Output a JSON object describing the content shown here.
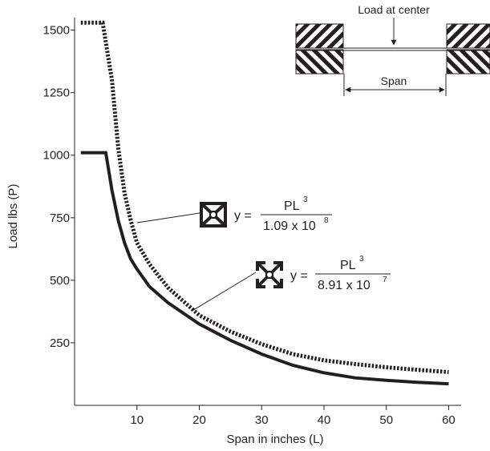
{
  "chart_data": {
    "type": "line",
    "title": "",
    "xlabel": "Span in inches (L)",
    "ylabel": "Load lbs (P)",
    "xlim": [
      0,
      62
    ],
    "ylim": [
      0,
      1550
    ],
    "xticks": [
      10,
      20,
      30,
      40,
      50,
      60
    ],
    "yticks": [
      250,
      500,
      750,
      1000,
      1250,
      1500
    ],
    "xtick_labels": [
      "10",
      "20",
      "30",
      "40",
      "50",
      "60"
    ],
    "ytick_labels": [
      "250",
      "500",
      "750",
      "1000",
      "1250",
      "1500"
    ],
    "grid": false,
    "legend": "none",
    "series": [
      {
        "style": "dotted",
        "color": "#231f20",
        "points": [
          [
            1,
            1530
          ],
          [
            4.5,
            1530
          ],
          [
            6,
            1300
          ],
          [
            7,
            1030
          ],
          [
            8,
            850
          ],
          [
            9,
            740
          ],
          [
            10,
            650
          ],
          [
            12,
            565
          ],
          [
            15,
            470
          ],
          [
            20,
            360
          ],
          [
            25,
            295
          ],
          [
            30,
            245
          ],
          [
            35,
            205
          ],
          [
            40,
            180
          ],
          [
            45,
            165
          ],
          [
            50,
            152
          ],
          [
            55,
            142
          ],
          [
            60,
            133
          ]
        ]
      },
      {
        "style": "solid",
        "color": "#231f20",
        "points": [
          [
            1,
            1010
          ],
          [
            5,
            1010
          ],
          [
            6,
            860
          ],
          [
            7,
            740
          ],
          [
            8,
            650
          ],
          [
            9,
            585
          ],
          [
            10,
            545
          ],
          [
            12,
            475
          ],
          [
            15,
            410
          ],
          [
            20,
            325
          ],
          [
            25,
            260
          ],
          [
            30,
            205
          ],
          [
            35,
            160
          ],
          [
            40,
            130
          ],
          [
            45,
            110
          ],
          [
            50,
            100
          ],
          [
            55,
            92
          ],
          [
            60,
            86
          ]
        ]
      }
    ],
    "annotations": [
      {
        "profile": "square-profile-a",
        "lhs": "y =",
        "numerator": "PL",
        "numerator_sup": "3",
        "denominator": "1.09 x 10",
        "denominator_sup": "8",
        "points_to": [
          10,
          730
        ]
      },
      {
        "profile": "square-profile-b",
        "lhs": "y =",
        "numerator": "PL",
        "numerator_sup": "3",
        "denominator": "8.91 x 10",
        "denominator_sup": "7",
        "points_to": [
          19,
          380
        ]
      }
    ],
    "inset": {
      "load_label": "Load at center",
      "span_label": "Span"
    }
  }
}
